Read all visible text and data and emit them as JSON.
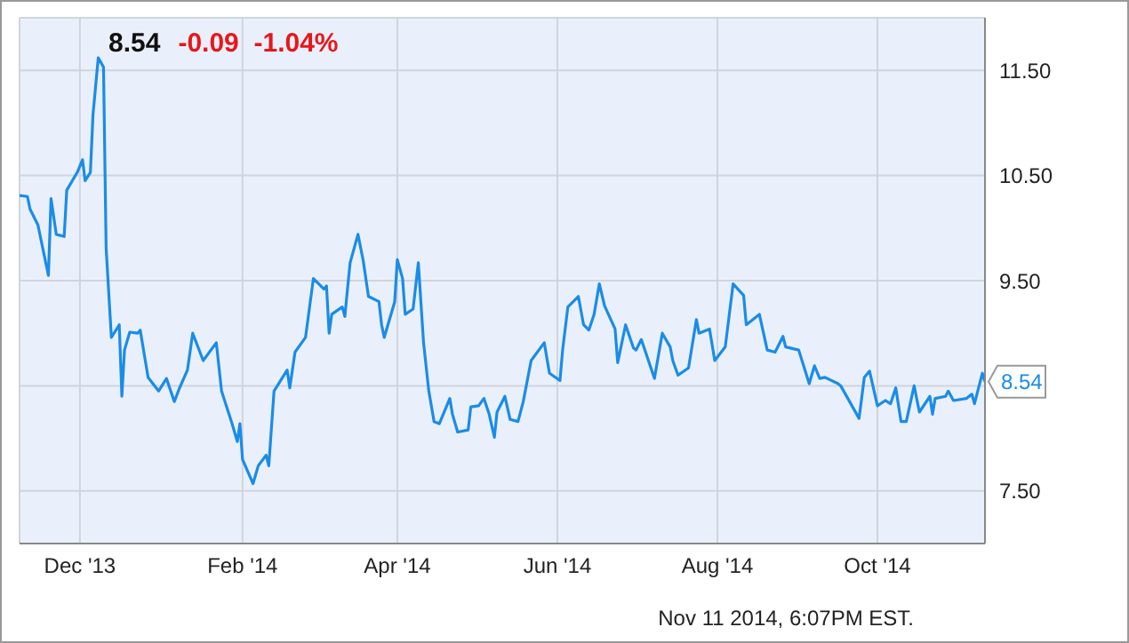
{
  "chart_data": {
    "type": "line",
    "title": "8.54",
    "subtitle": "-0.09  -1.04%",
    "x": [
      "2013-11-08",
      "2013-11-11",
      "2013-11-12",
      "2013-11-15",
      "2013-11-19",
      "2013-11-20",
      "2013-11-22",
      "2013-11-25",
      "2013-11-26",
      "2013-11-30",
      "2013-12-02",
      "2013-12-03",
      "2013-12-05",
      "2013-12-06",
      "2013-12-08",
      "2013-12-10",
      "2013-12-11",
      "2013-12-13",
      "2013-12-16",
      "2013-12-17",
      "2013-12-18",
      "2013-12-20",
      "2013-12-23",
      "2013-12-24",
      "2013-12-27",
      "2013-12-31",
      "2014-01-03",
      "2014-01-06",
      "2014-01-08",
      "2014-01-11",
      "2014-01-13",
      "2014-01-17",
      "2014-01-22",
      "2014-01-24",
      "2014-01-28",
      "2014-01-30",
      "2014-01-31",
      "2014-02-01",
      "2014-02-05",
      "2014-02-07",
      "2014-02-10",
      "2014-02-11",
      "2014-02-13",
      "2014-02-18",
      "2014-02-19",
      "2014-02-21",
      "2014-02-25",
      "2014-02-28",
      "2014-03-04",
      "2014-03-05",
      "2014-03-06",
      "2014-03-07",
      "2014-03-11",
      "2014-03-12",
      "2014-03-13",
      "2014-03-14",
      "2014-03-17",
      "2014-03-19",
      "2014-03-21",
      "2014-03-25",
      "2014-03-26",
      "2014-03-27",
      "2014-03-31",
      "2014-04-01",
      "2014-04-03",
      "2014-04-04",
      "2014-04-07",
      "2014-04-09",
      "2014-04-11",
      "2014-04-13",
      "2014-04-15",
      "2014-04-17",
      "2014-04-21",
      "2014-04-22",
      "2014-04-24",
      "2014-04-28",
      "2014-04-29",
      "2014-05-02",
      "2014-05-04",
      "2014-05-06",
      "2014-05-08",
      "2014-05-09",
      "2014-05-12",
      "2014-05-14",
      "2014-05-17",
      "2014-05-19",
      "2014-05-22",
      "2014-05-27",
      "2014-05-29",
      "2014-06-02",
      "2014-06-03",
      "2014-06-05",
      "2014-06-09",
      "2014-06-11",
      "2014-06-13",
      "2014-06-15",
      "2014-06-17",
      "2014-06-19",
      "2014-06-23",
      "2014-06-24",
      "2014-06-27",
      "2014-06-30",
      "2014-07-01",
      "2014-07-03",
      "2014-07-08",
      "2014-07-11",
      "2014-07-14",
      "2014-07-15",
      "2014-07-17",
      "2014-07-21",
      "2014-07-24",
      "2014-07-25",
      "2014-07-29",
      "2014-07-31",
      "2014-08-04",
      "2014-08-07",
      "2014-08-11",
      "2014-08-12",
      "2014-08-17",
      "2014-08-20",
      "2014-08-23",
      "2014-08-26",
      "2014-08-27",
      "2014-09-01",
      "2014-09-05",
      "2014-09-07",
      "2014-09-09",
      "2014-09-11",
      "2014-09-16",
      "2014-09-17",
      "2014-09-24",
      "2014-09-26",
      "2014-09-28",
      "2014-10-01",
      "2014-10-04",
      "2014-10-06",
      "2014-10-08",
      "2014-10-10",
      "2014-10-12",
      "2014-10-15",
      "2014-10-17",
      "2014-10-21",
      "2014-10-22",
      "2014-10-23",
      "2014-10-27",
      "2014-10-28",
      "2014-10-30",
      "2014-11-04",
      "2014-11-06",
      "2014-11-07",
      "2014-11-10",
      "2014-11-11"
    ],
    "series": [
      {
        "color": "#1a8ce8",
        "values": [
          10.31,
          10.3,
          10.18,
          10.03,
          9.55,
          10.28,
          9.94,
          9.92,
          10.36,
          10.53,
          10.65,
          10.45,
          10.53,
          11.08,
          11.62,
          11.53,
          9.81,
          8.96,
          9.08,
          8.4,
          8.84,
          9.01,
          9.0,
          9.03,
          8.58,
          8.45,
          8.57,
          8.35,
          8.48,
          8.65,
          9.0,
          8.74,
          8.91,
          8.45,
          8.14,
          7.97,
          8.14,
          7.8,
          7.57,
          7.74,
          7.84,
          7.74,
          8.45,
          8.65,
          8.48,
          8.82,
          8.96,
          9.52,
          9.42,
          9.45,
          9.0,
          9.18,
          9.25,
          9.16,
          9.42,
          9.67,
          9.94,
          9.69,
          9.35,
          9.3,
          9.08,
          8.96,
          9.3,
          9.7,
          9.52,
          9.18,
          9.23,
          9.67,
          8.91,
          8.45,
          8.16,
          8.14,
          8.38,
          8.23,
          8.06,
          8.08,
          8.3,
          8.31,
          8.38,
          8.23,
          8.01,
          8.25,
          8.4,
          8.18,
          8.16,
          8.35,
          8.74,
          8.91,
          8.62,
          8.55,
          8.84,
          9.25,
          9.35,
          9.08,
          9.03,
          9.18,
          9.47,
          9.26,
          9.04,
          8.72,
          9.08,
          8.86,
          8.84,
          8.94,
          8.57,
          9.0,
          8.87,
          8.74,
          8.6,
          8.67,
          9.13,
          9.0,
          9.04,
          8.74,
          8.87,
          9.47,
          9.36,
          9.08,
          9.18,
          8.84,
          8.82,
          8.97,
          8.87,
          8.84,
          8.52,
          8.69,
          8.57,
          8.58,
          8.52,
          8.5,
          8.19,
          8.58,
          8.64,
          8.31,
          8.36,
          8.33,
          8.48,
          8.16,
          8.16,
          8.5,
          8.25,
          8.4,
          8.23,
          8.38,
          8.4,
          8.45,
          8.36,
          8.38,
          8.42,
          8.33,
          8.62,
          8.54
        ]
      }
    ],
    "xlim": [
      "2013-11-08",
      "2014-11-11"
    ],
    "xticks": [
      {
        "value": "2013-12-01",
        "label": "Dec '13"
      },
      {
        "value": "2014-02-01",
        "label": "Feb '14"
      },
      {
        "value": "2014-04-01",
        "label": "Apr '14"
      },
      {
        "value": "2014-06-01",
        "label": "Jun '14"
      },
      {
        "value": "2014-08-01",
        "label": "Aug '14"
      },
      {
        "value": "2014-10-01",
        "label": "Oct '14"
      }
    ],
    "ylim": [
      7,
      12
    ],
    "yticks": [
      {
        "value": 7.5,
        "label": "7.50"
      },
      {
        "value": 8.5,
        "label": null
      },
      {
        "value": 9.5,
        "label": "9.50"
      },
      {
        "value": 10.5,
        "label": "10.50"
      },
      {
        "value": 11.5,
        "label": "11.50"
      }
    ],
    "grid": true,
    "annotations": [
      "Nov 11 2014, 6:07PM EST.",
      {
        "text": "8.54",
        "x": "2014-11-11",
        "y": 8.54
      }
    ]
  }
}
